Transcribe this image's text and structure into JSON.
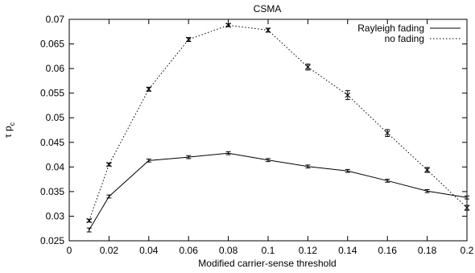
{
  "chart_data": {
    "type": "line",
    "title": "CSMA",
    "xlabel": "Modified carrier-sense threshold",
    "ylabel": "τ p_C",
    "xlim": [
      0,
      0.2
    ],
    "ylim": [
      0.025,
      0.07
    ],
    "x_ticks": [
      "0",
      "0.02",
      "0.04",
      "0.06",
      "0.08",
      "0.1",
      "0.12",
      "0.14",
      "0.16",
      "0.18",
      "0.2"
    ],
    "y_ticks": [
      "0.025",
      "0.03",
      "0.035",
      "0.04",
      "0.045",
      "0.05",
      "0.055",
      "0.06",
      "0.065",
      "0.07"
    ],
    "grid": false,
    "legend_position": "top-right",
    "series": [
      {
        "name": "Rayleigh fading",
        "style": "solid",
        "x": [
          0.01,
          0.02,
          0.04,
          0.06,
          0.08,
          0.1,
          0.12,
          0.14,
          0.16,
          0.18,
          0.2
        ],
        "y": [
          0.0272,
          0.034,
          0.0413,
          0.042,
          0.0428,
          0.0414,
          0.0401,
          0.0392,
          0.0372,
          0.0351,
          0.0338
        ],
        "err": [
          0.0004,
          0.0003,
          0.0003,
          0.0003,
          0.0003,
          0.0003,
          0.0003,
          0.0003,
          0.0003,
          0.0003,
          0.0003
        ]
      },
      {
        "name": "no fading",
        "style": "dotted",
        "x": [
          0.01,
          0.02,
          0.04,
          0.06,
          0.08,
          0.1,
          0.12,
          0.14,
          0.16,
          0.18,
          0.2
        ],
        "y": [
          0.0291,
          0.0405,
          0.0558,
          0.0659,
          0.0688,
          0.0678,
          0.0603,
          0.0546,
          0.0469,
          0.0394,
          0.0317
        ],
        "err": [
          0.0003,
          0.0003,
          0.0004,
          0.0004,
          0.0003,
          0.0004,
          0.0006,
          0.0009,
          0.0007,
          0.0005,
          0.0005
        ]
      }
    ]
  }
}
